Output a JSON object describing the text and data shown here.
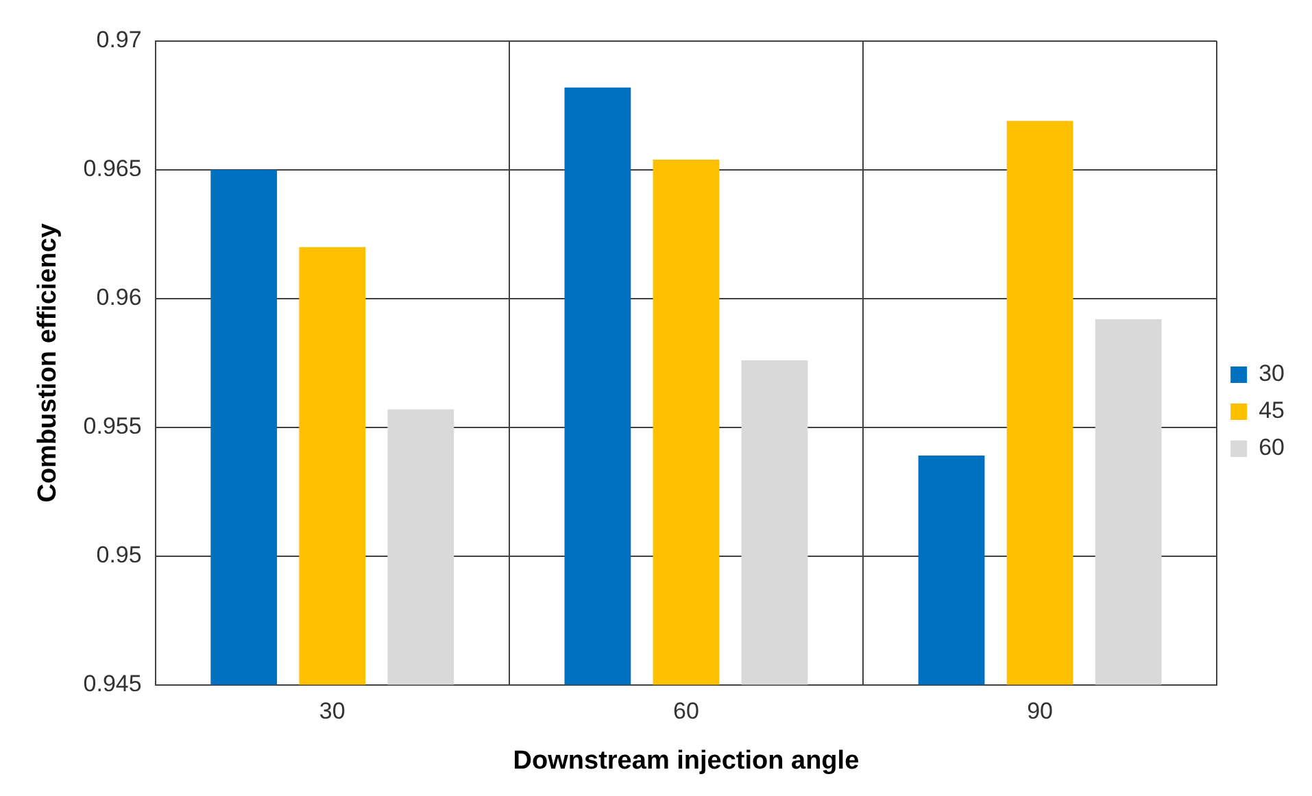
{
  "chart_data": {
    "type": "bar",
    "xlabel": "Downstream injection angle",
    "ylabel": "Combustion efficiency",
    "categories": [
      "30",
      "60",
      "90"
    ],
    "series": [
      {
        "name": "30",
        "color": "#0070c0",
        "values": [
          0.965,
          0.9682,
          0.9539
        ]
      },
      {
        "name": "45",
        "color": "#ffc000",
        "values": [
          0.962,
          0.9654,
          0.9669
        ]
      },
      {
        "name": "60",
        "color": "#d9d9d9",
        "values": [
          0.9557,
          0.9576,
          0.9592
        ]
      }
    ],
    "ylim": [
      0.945,
      0.97
    ],
    "yticks": [
      0.945,
      0.95,
      0.955,
      0.96,
      0.965,
      0.97
    ],
    "grid": true,
    "legend": "right"
  }
}
